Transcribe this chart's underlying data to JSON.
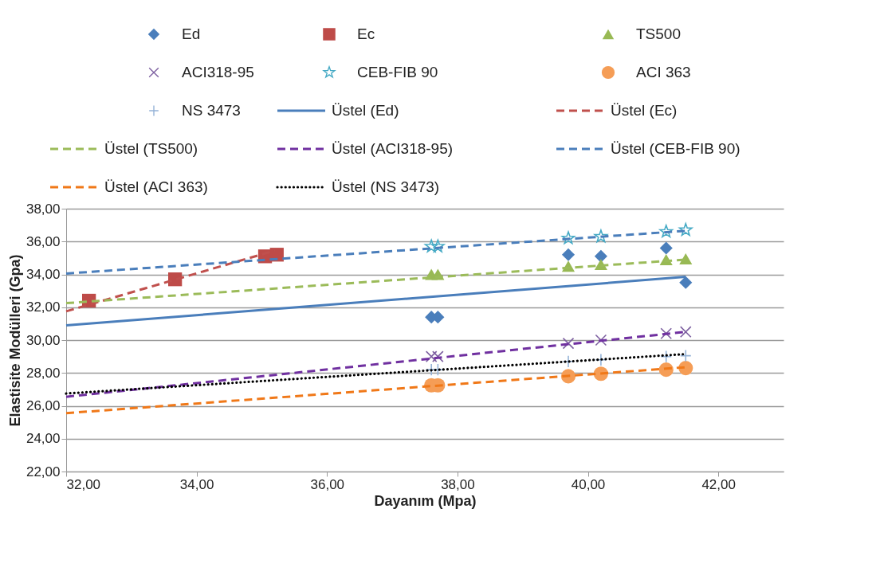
{
  "chart_data": {
    "type": "scatter",
    "xlabel": "Dayanım (Mpa)",
    "ylabel": "Elastisite Modülleri (Gpa)",
    "xlim": [
      32,
      43
    ],
    "ylim": [
      22,
      38
    ],
    "xticks": [
      {
        "value": 32,
        "label": "32,00"
      },
      {
        "value": 34,
        "label": "34,00"
      },
      {
        "value": 36,
        "label": "36,00"
      },
      {
        "value": 38,
        "label": "38,00"
      },
      {
        "value": 40,
        "label": "40,00"
      },
      {
        "value": 42,
        "label": "42,00"
      }
    ],
    "yticks": [
      {
        "value": 22,
        "label": "22,00"
      },
      {
        "value": 24,
        "label": "24,00"
      },
      {
        "value": 26,
        "label": "26,00"
      },
      {
        "value": 28,
        "label": "28,00"
      },
      {
        "value": 30,
        "label": "30,00"
      },
      {
        "value": 32,
        "label": "32,00"
      },
      {
        "value": 34,
        "label": "34,00"
      },
      {
        "value": 36,
        "label": "36,00"
      },
      {
        "value": 38,
        "label": "38,00"
      }
    ],
    "grid": "y",
    "legend": "top",
    "series": [
      {
        "name": "Ed",
        "type": "scatter",
        "marker": "diamond",
        "color": "#4a7ebb",
        "x": [
          37.6,
          37.7,
          39.7,
          40.2,
          41.2,
          41.5
        ],
        "values": [
          31.4,
          31.4,
          35.2,
          35.1,
          35.6,
          33.5
        ]
      },
      {
        "name": "Ec",
        "type": "scatter",
        "marker": "square",
        "color": "#be4b48",
        "x": [
          32.35,
          33.67,
          35.05,
          35.23
        ],
        "values": [
          32.4,
          33.7,
          35.1,
          35.2
        ]
      },
      {
        "name": "TS500",
        "type": "scatter",
        "marker": "triangle",
        "color": "#98b954",
        "x": [
          37.6,
          37.7,
          39.7,
          40.2,
          41.2,
          41.5
        ],
        "values": [
          34.0,
          34.0,
          34.5,
          34.6,
          34.9,
          34.95
        ]
      },
      {
        "name": "ACI318-95",
        "type": "scatter",
        "marker": "cross",
        "color": "#7d60a0",
        "x": [
          37.6,
          37.7,
          39.7,
          40.2,
          41.2,
          41.5
        ],
        "values": [
          29.0,
          29.0,
          29.8,
          30.0,
          30.4,
          30.5
        ]
      },
      {
        "name": "CEB-FIB 90",
        "type": "scatter",
        "marker": "star",
        "color": "#46aac5",
        "x": [
          37.6,
          37.7,
          39.7,
          40.2,
          41.2,
          41.5
        ],
        "values": [
          35.7,
          35.7,
          36.2,
          36.3,
          36.6,
          36.7
        ]
      },
      {
        "name": "ACI 363",
        "type": "scatter",
        "marker": "circle",
        "color": "#f59d56",
        "x": [
          37.6,
          37.7,
          39.7,
          40.2,
          41.2,
          41.5
        ],
        "values": [
          27.25,
          27.25,
          27.8,
          27.95,
          28.2,
          28.3
        ]
      },
      {
        "name": "NS 3473",
        "type": "scatter",
        "marker": "plus",
        "color": "#95b3d7",
        "x": [
          37.6,
          37.7,
          39.7,
          40.2,
          41.2,
          41.5
        ],
        "values": [
          28.2,
          28.2,
          28.7,
          28.8,
          29.0,
          29.05
        ]
      },
      {
        "name": "Üstel (Ed)",
        "type": "line",
        "line_style": "solid",
        "color": "#4a7ebb",
        "x": [
          32,
          41.5
        ],
        "values": [
          30.9,
          33.85
        ]
      },
      {
        "name": "Üstel (Ec)",
        "type": "line",
        "line_style": "dashed",
        "color": "#c0504d",
        "x": [
          32,
          35.2
        ],
        "values": [
          31.75,
          35.45
        ]
      },
      {
        "name": "Üstel (TS500)",
        "type": "line",
        "line_style": "dashed",
        "color": "#9bbb59",
        "x": [
          32,
          41.5
        ],
        "values": [
          32.25,
          34.9
        ]
      },
      {
        "name": "Üstel (ACI318-95)",
        "type": "line",
        "line_style": "dashed",
        "color": "#7030a0",
        "x": [
          32,
          41.5
        ],
        "values": [
          26.55,
          30.5
        ]
      },
      {
        "name": "Üstel (CEB-FIB 90)",
        "type": "line",
        "line_style": "dashed",
        "color": "#4a7ebb",
        "x": [
          32,
          41.5
        ],
        "values": [
          34.05,
          36.65
        ]
      },
      {
        "name": "Üstel (ACI 363)",
        "type": "line",
        "line_style": "dashed",
        "color": "#f07818",
        "x": [
          32,
          41.5
        ],
        "values": [
          25.55,
          28.35
        ]
      },
      {
        "name": "Üstel (NS 3473)",
        "type": "line",
        "line_style": "dotted",
        "color": "#000000",
        "x": [
          32,
          41.5
        ],
        "values": [
          26.75,
          29.15
        ]
      }
    ]
  }
}
